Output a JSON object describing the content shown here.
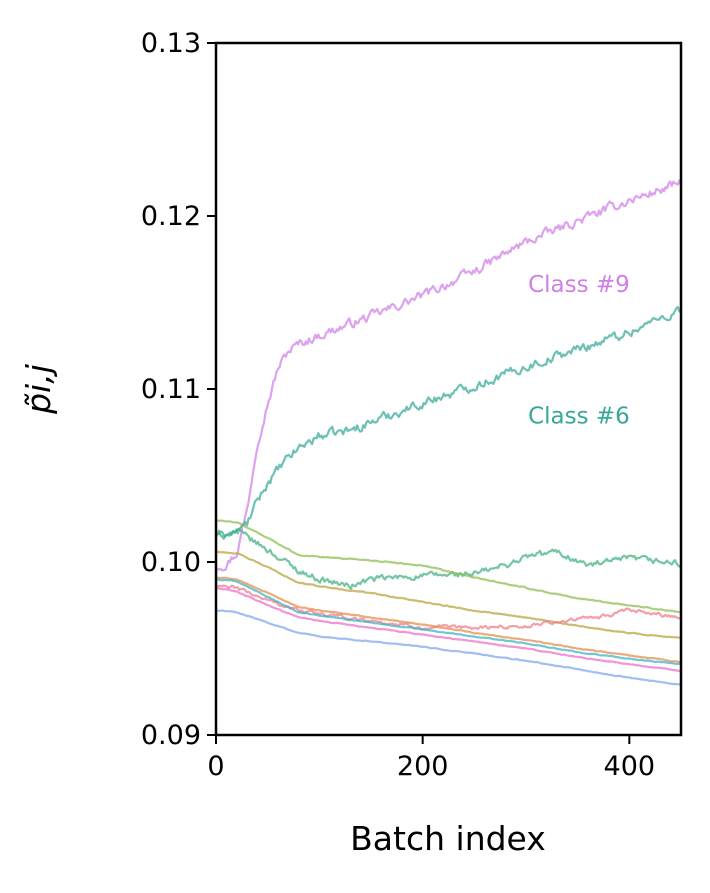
{
  "chart_data": {
    "type": "line",
    "xlabel": "Batch index",
    "ylabel": "p̃i,j",
    "xlim": [
      0,
      450
    ],
    "ylim": [
      0.09,
      0.13
    ],
    "xticks": [
      {
        "value": 0,
        "label": "0"
      },
      {
        "value": 200,
        "label": "200"
      },
      {
        "value": 400,
        "label": "400"
      }
    ],
    "yticks": [
      {
        "value": 0.09,
        "label": "0.09"
      },
      {
        "value": 0.1,
        "label": "0.10"
      },
      {
        "value": 0.11,
        "label": "0.11"
      },
      {
        "value": 0.12,
        "label": "0.12"
      },
      {
        "value": 0.13,
        "label": "0.13"
      }
    ],
    "grid": false,
    "legend": "none",
    "annotations": [
      {
        "text": "Class #9",
        "x": 302,
        "y": 0.1156,
        "color": "#d07ee8"
      },
      {
        "text": "Class #6",
        "x": 302,
        "y": 0.108,
        "color": "#36a898"
      }
    ],
    "series": [
      {
        "color": "#d07ee8",
        "noise": 0.00045,
        "x": [
          0,
          10,
          20,
          30,
          40,
          50,
          60,
          70,
          80,
          100,
          150,
          200,
          250,
          300,
          350,
          400,
          450
        ],
        "y": [
          0.0998,
          0.0999,
          0.1005,
          0.103,
          0.107,
          0.1092,
          0.1112,
          0.1122,
          0.1126,
          0.1131,
          0.1142,
          0.1154,
          0.1168,
          0.1185,
          0.1197,
          0.1209,
          0.1219
        ]
      },
      {
        "color": "#36a898",
        "noise": 0.00045,
        "x": [
          0,
          20,
          30,
          40,
          50,
          60,
          70,
          80,
          100,
          130,
          150,
          200,
          250,
          300,
          350,
          400,
          450
        ],
        "y": [
          0.1015,
          0.1017,
          0.1022,
          0.1035,
          0.1046,
          0.1053,
          0.106,
          0.1066,
          0.1073,
          0.1076,
          0.1081,
          0.1092,
          0.1102,
          0.1113,
          0.1123,
          0.1133,
          0.1146
        ]
      },
      {
        "color": "#3fb080",
        "noise": 0.0003,
        "x": [
          0,
          20,
          50,
          80,
          100,
          130,
          150,
          200,
          250,
          280,
          300,
          330,
          360,
          400,
          450
        ],
        "y": [
          0.1015,
          0.1018,
          0.1007,
          0.0995,
          0.099,
          0.0986,
          0.099,
          0.0992,
          0.0993,
          0.0998,
          0.1003,
          0.1006,
          0.0998,
          0.1002,
          0.0999
        ]
      },
      {
        "color": "#8cbd4e",
        "noise": 5e-05,
        "x": [
          0,
          20,
          50,
          80,
          100,
          150,
          200,
          250,
          300,
          350,
          400,
          450
        ],
        "y": [
          0.1024,
          0.1023,
          0.1014,
          0.1004,
          0.1003,
          0.1001,
          0.0998,
          0.0991,
          0.0985,
          0.0979,
          0.0975,
          0.0971
        ]
      },
      {
        "color": "#b8a23c",
        "noise": 5e-05,
        "x": [
          0,
          20,
          50,
          80,
          100,
          150,
          200,
          250,
          300,
          350,
          400,
          450
        ],
        "y": [
          0.1006,
          0.1005,
          0.0997,
          0.0988,
          0.0986,
          0.0982,
          0.0977,
          0.0972,
          0.0968,
          0.0963,
          0.0959,
          0.0956
        ]
      },
      {
        "color": "#f07888",
        "noise": 0.00018,
        "x": [
          0,
          20,
          50,
          80,
          100,
          150,
          200,
          250,
          300,
          350,
          370,
          400,
          450
        ],
        "y": [
          0.0986,
          0.0985,
          0.0978,
          0.0972,
          0.097,
          0.0966,
          0.0962,
          0.0962,
          0.0963,
          0.0967,
          0.0968,
          0.0972,
          0.0968
        ]
      },
      {
        "color": "#e08a4a",
        "noise": 4e-05,
        "x": [
          0,
          20,
          50,
          80,
          100,
          150,
          200,
          250,
          300,
          350,
          400,
          450
        ],
        "y": [
          0.0991,
          0.099,
          0.0982,
          0.0974,
          0.0972,
          0.0968,
          0.0964,
          0.0959,
          0.0955,
          0.095,
          0.0946,
          0.0942
        ]
      },
      {
        "color": "#3cb0c4",
        "noise": 4e-05,
        "x": [
          0,
          20,
          50,
          80,
          100,
          150,
          200,
          250,
          300,
          350,
          400,
          450
        ],
        "y": [
          0.099,
          0.0989,
          0.098,
          0.0971,
          0.0969,
          0.0965,
          0.0961,
          0.0957,
          0.0953,
          0.0948,
          0.0944,
          0.0941
        ]
      },
      {
        "color": "#ec6cc8",
        "noise": 4e-05,
        "x": [
          0,
          20,
          50,
          80,
          100,
          150,
          200,
          250,
          300,
          350,
          400,
          450
        ],
        "y": [
          0.0985,
          0.0983,
          0.0975,
          0.0968,
          0.0966,
          0.0962,
          0.0958,
          0.0954,
          0.095,
          0.0945,
          0.0941,
          0.0937
        ]
      },
      {
        "color": "#7ea4ee",
        "noise": 4e-05,
        "x": [
          0,
          20,
          50,
          80,
          100,
          150,
          200,
          250,
          300,
          350,
          400,
          450
        ],
        "y": [
          0.0972,
          0.0971,
          0.0965,
          0.0959,
          0.0957,
          0.0954,
          0.0951,
          0.0947,
          0.0943,
          0.0938,
          0.0933,
          0.0929
        ]
      }
    ]
  }
}
